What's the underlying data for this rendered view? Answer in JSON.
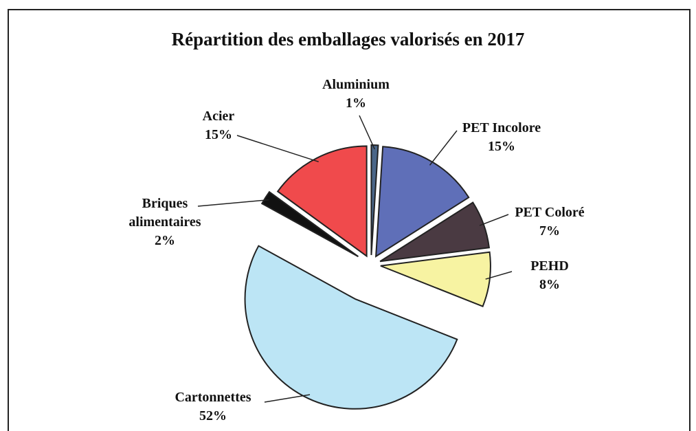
{
  "chart_data": {
    "type": "pie",
    "title": "Répartition des emballages valorisés en 2017",
    "categories": [
      "Aluminium",
      "PET Incolore",
      "PET Coloré",
      "PEHD",
      "Cartonnettes",
      "Briques alimentaires",
      "Acier"
    ],
    "values": [
      1,
      15,
      7,
      8,
      52,
      2,
      15
    ],
    "value_labels": [
      "1%",
      "15%",
      "7%",
      "8%",
      "52%",
      "2%",
      "15%"
    ],
    "colors": [
      "#4a6688",
      "#5f6fb8",
      "#4a3a42",
      "#f7f3a2",
      "#bce5f5",
      "#111111",
      "#f04a4c"
    ]
  }
}
